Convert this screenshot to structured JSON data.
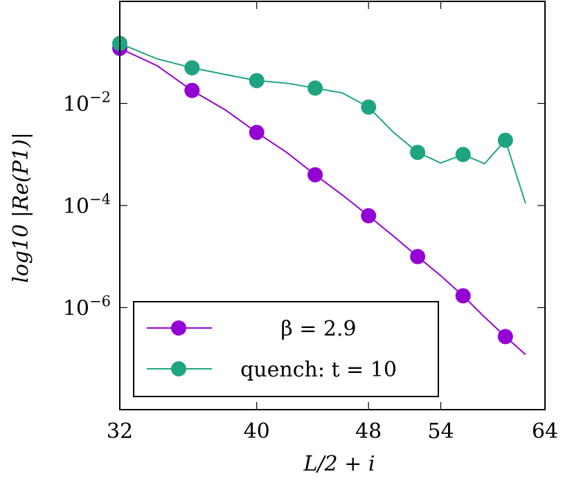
{
  "chart_data": {
    "type": "line",
    "xlabel": "L/2 + i",
    "ylabel": "log10 |Re(P1)|",
    "x_scale": "log",
    "y_scale": "log",
    "xlim": [
      32,
      64
    ],
    "ylim": [
      1e-08,
      1
    ],
    "x_ticks": [
      32,
      40,
      48,
      54,
      64
    ],
    "x_tick_labels": [
      "32",
      "40",
      "48",
      "54",
      "64"
    ],
    "y_ticks": [
      0.01,
      0.0001,
      1e-06
    ],
    "y_tick_labels": [
      {
        "base": "10",
        "exp": "−2"
      },
      {
        "base": "10",
        "exp": "−4"
      },
      {
        "base": "10",
        "exp": "−6"
      }
    ],
    "legend_position": "bottom-left",
    "series": [
      {
        "name": "β = 2.9",
        "legend_label": "β = 2.9",
        "color": "#9400D3",
        "x": [
          32,
          34,
          36,
          38,
          40,
          42,
          44,
          46,
          48,
          50,
          52,
          54,
          56,
          58,
          60,
          62
        ],
        "y": [
          0.12,
          0.055,
          0.018,
          0.0075,
          0.0027,
          0.0011,
          0.0004,
          0.00016,
          6.3e-05,
          2.5e-05,
          1e-05,
          4.2e-06,
          1.7e-06,
          6.5e-07,
          2.7e-07,
          1.2e-07
        ],
        "markers_x": [
          32,
          36,
          40,
          44,
          48,
          52,
          56,
          60
        ],
        "markers_y": [
          0.12,
          0.018,
          0.0027,
          0.0004,
          6.3e-05,
          1e-05,
          1.7e-06,
          2.7e-07
        ]
      },
      {
        "name": "quench: t = 10",
        "legend_label": "quench: t = 10",
        "color": "#1FA481",
        "x": [
          32,
          34,
          36,
          38,
          40,
          42,
          44,
          46,
          48,
          50,
          52,
          54,
          56,
          58,
          60,
          62
        ],
        "y": [
          0.15,
          0.075,
          0.05,
          0.037,
          0.028,
          0.025,
          0.02,
          0.016,
          0.0085,
          0.0027,
          0.0011,
          0.00068,
          0.001,
          0.00066,
          0.0019,
          0.00011
        ],
        "markers_x": [
          32,
          36,
          40,
          44,
          48,
          52,
          56,
          60
        ],
        "markers_y": [
          0.15,
          0.05,
          0.028,
          0.02,
          0.0085,
          0.0011,
          0.001,
          0.0019
        ]
      }
    ]
  }
}
